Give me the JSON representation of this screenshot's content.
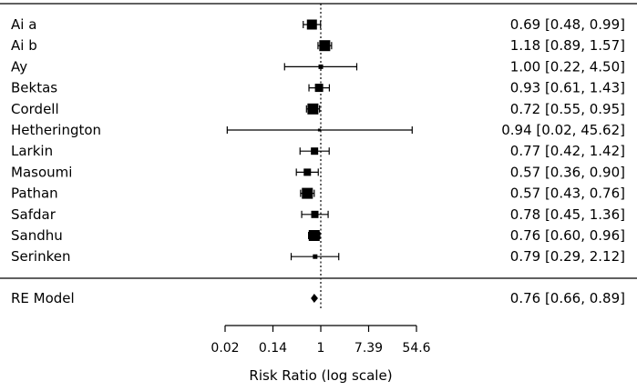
{
  "chart_data": {
    "type": "forest",
    "xlabel": "Risk Ratio (log scale)",
    "x_scale": "log",
    "xlim": [
      0.02,
      54.6
    ],
    "reference_line": 1,
    "x_ticks": [
      {
        "value": 0.0183,
        "label": "0.02"
      },
      {
        "value": 0.1353,
        "label": "0.14"
      },
      {
        "value": 1,
        "label": "1"
      },
      {
        "value": 7.389,
        "label": "7.39"
      },
      {
        "value": 54.6,
        "label": "54.6"
      }
    ],
    "studies": [
      {
        "name": "Ai a",
        "rr": 0.69,
        "lower": 0.48,
        "upper": 0.99,
        "ci_text": "0.69 [0.48,  0.99]"
      },
      {
        "name": "Ai b",
        "rr": 1.18,
        "lower": 0.89,
        "upper": 1.57,
        "ci_text": "1.18 [0.89,  1.57]"
      },
      {
        "name": "Ay",
        "rr": 1.0,
        "lower": 0.22,
        "upper": 4.5,
        "ci_text": "1.00 [0.22,  4.50]"
      },
      {
        "name": "Bektas",
        "rr": 0.93,
        "lower": 0.61,
        "upper": 1.43,
        "ci_text": "0.93 [0.61,  1.43]"
      },
      {
        "name": "Cordell",
        "rr": 0.72,
        "lower": 0.55,
        "upper": 0.95,
        "ci_text": "0.72 [0.55,  0.95]"
      },
      {
        "name": "Hetherington",
        "rr": 0.94,
        "lower": 0.02,
        "upper": 45.62,
        "ci_text": "0.94 [0.02, 45.62]"
      },
      {
        "name": "Larkin",
        "rr": 0.77,
        "lower": 0.42,
        "upper": 1.42,
        "ci_text": "0.77 [0.42,  1.42]"
      },
      {
        "name": "Masoumi",
        "rr": 0.57,
        "lower": 0.36,
        "upper": 0.9,
        "ci_text": "0.57 [0.36,  0.90]"
      },
      {
        "name": "Pathan",
        "rr": 0.57,
        "lower": 0.43,
        "upper": 0.76,
        "ci_text": "0.57 [0.43,  0.76]"
      },
      {
        "name": "Safdar",
        "rr": 0.78,
        "lower": 0.45,
        "upper": 1.36,
        "ci_text": "0.78 [0.45,  1.36]"
      },
      {
        "name": "Sandhu",
        "rr": 0.76,
        "lower": 0.6,
        "upper": 0.96,
        "ci_text": "0.76 [0.60,  0.96]"
      },
      {
        "name": "Serinken",
        "rr": 0.79,
        "lower": 0.29,
        "upper": 2.12,
        "ci_text": "0.79 [0.29,  2.12]"
      }
    ],
    "summary": {
      "name": "RE Model",
      "rr": 0.76,
      "lower": 0.66,
      "upper": 0.89,
      "ci_text": "0.76 [0.66,  0.89]"
    }
  }
}
